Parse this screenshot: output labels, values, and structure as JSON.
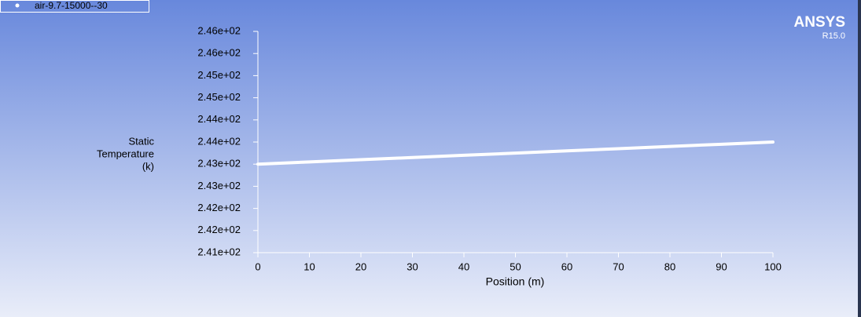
{
  "chart_data": {
    "type": "line",
    "ylabel_lines": [
      "Static",
      "Temperature",
      "(k)"
    ],
    "xlabel": "Position (m)",
    "logo": {
      "name": "ANSYS",
      "version": "R15.0"
    },
    "x": [
      0,
      10,
      20,
      30,
      40,
      50,
      60,
      70,
      80,
      90,
      100
    ],
    "series": [
      {
        "name": "air-9.7-15000--30",
        "color": "#ffffff",
        "values": [
          243,
          243.05,
          243.1,
          243.15,
          243.2,
          243.25,
          243.3,
          243.35,
          243.4,
          243.45,
          243.5
        ]
      }
    ],
    "xlim": [
      0,
      100
    ],
    "xticks": [
      0,
      10,
      20,
      30,
      40,
      50,
      60,
      70,
      80,
      90,
      100
    ],
    "ylim": [
      241,
      246
    ],
    "yticks": [
      {
        "value": 241,
        "label": "2.41e+02"
      },
      {
        "value": 241.5,
        "label": "2.42e+02"
      },
      {
        "value": 242,
        "label": "2.42e+02"
      },
      {
        "value": 242.5,
        "label": "2.43e+02"
      },
      {
        "value": 243,
        "label": "2.43e+02"
      },
      {
        "value": 243.5,
        "label": "2.44e+02"
      },
      {
        "value": 244,
        "label": "2.44e+02"
      },
      {
        "value": 244.5,
        "label": "2.45e+02"
      },
      {
        "value": 245,
        "label": "2.45e+02"
      },
      {
        "value": 245.5,
        "label": "2.46e+02"
      },
      {
        "value": 246,
        "label": "2.46e+02"
      }
    ],
    "legend": "top-left"
  }
}
